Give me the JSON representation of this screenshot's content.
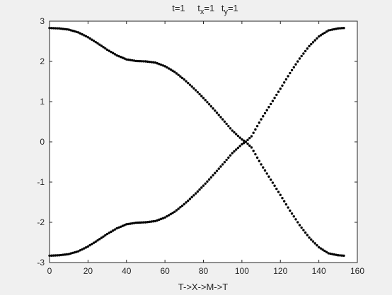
{
  "figure": {
    "background": "#f0f0f0",
    "axes_background": "#ffffff",
    "marker_color": "#000000",
    "axis_color": "#262626"
  },
  "chart_data": {
    "type": "scatter",
    "title_parts": {
      "t": "t=1",
      "tx_base": "t",
      "tx_sub": "x",
      "tx_val": "=1",
      "ty_base": "t",
      "ty_sub": "y",
      "ty_val": "=1"
    },
    "xlabel": "T->X->M->T",
    "ylabel": "",
    "xlim": [
      0,
      160
    ],
    "ylim": [
      -3,
      3
    ],
    "xticks": [
      0,
      20,
      40,
      60,
      80,
      100,
      120,
      140,
      160
    ],
    "yticks": [
      -3,
      -2,
      -1,
      0,
      1,
      2,
      3
    ],
    "xtick_labels": [
      "0",
      "20",
      "40",
      "60",
      "80",
      "100",
      "120",
      "140",
      "160"
    ],
    "ytick_labels": [
      "-3",
      "-2",
      "-1",
      "0",
      "1",
      "2",
      "3"
    ],
    "grid": false,
    "series": [
      {
        "x": [
          0,
          5,
          10,
          15,
          20,
          25,
          30,
          35,
          40,
          45,
          50,
          55,
          60,
          65,
          70,
          75,
          80,
          85,
          90,
          95,
          100,
          102,
          105,
          110,
          115,
          120,
          125,
          130,
          135,
          140,
          145,
          150,
          153
        ],
        "y": [
          2.83,
          2.82,
          2.79,
          2.72,
          2.6,
          2.45,
          2.29,
          2.15,
          2.05,
          2.01,
          2.0,
          1.97,
          1.88,
          1.74,
          1.55,
          1.33,
          1.09,
          0.83,
          0.56,
          0.28,
          0.06,
          0.0,
          -0.14,
          -0.56,
          -0.94,
          -1.32,
          -1.71,
          -2.07,
          -2.38,
          -2.62,
          -2.77,
          -2.82,
          -2.83
        ]
      },
      {
        "x": [
          0,
          5,
          10,
          15,
          20,
          25,
          30,
          35,
          40,
          45,
          50,
          55,
          60,
          65,
          70,
          75,
          80,
          85,
          90,
          95,
          100,
          102,
          105,
          110,
          115,
          120,
          125,
          130,
          135,
          140,
          145,
          150,
          153
        ],
        "y": [
          -2.83,
          -2.82,
          -2.79,
          -2.72,
          -2.6,
          -2.45,
          -2.29,
          -2.15,
          -2.05,
          -2.01,
          -2.0,
          -1.97,
          -1.88,
          -1.74,
          -1.55,
          -1.33,
          -1.09,
          -0.83,
          -0.56,
          -0.28,
          -0.06,
          0.0,
          0.14,
          0.56,
          0.94,
          1.32,
          1.71,
          2.07,
          2.38,
          2.62,
          2.77,
          2.82,
          2.83
        ]
      }
    ]
  }
}
